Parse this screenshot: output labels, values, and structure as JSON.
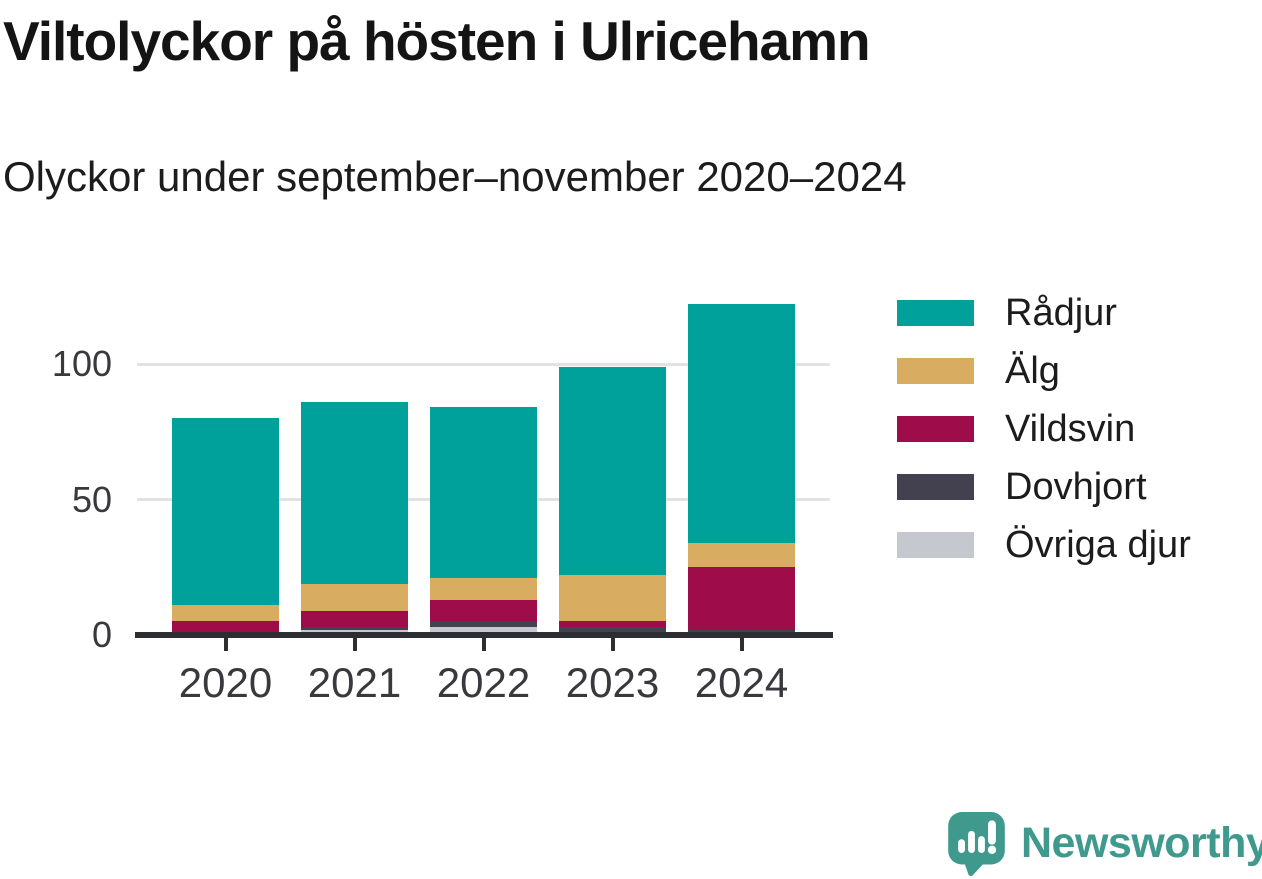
{
  "header": {
    "title": "Viltolyckor på hösten i Ulricehamn",
    "subtitle": "Olyckor under september–november 2020–2024"
  },
  "chart_data": {
    "type": "bar",
    "stacked": true,
    "title": "Viltolyckor på hösten i Ulricehamn",
    "subtitle": "Olyckor under september–november 2020–2024",
    "categories": [
      "2020",
      "2021",
      "2022",
      "2023",
      "2024"
    ],
    "series": [
      {
        "name": "Rådjur",
        "color": "#00a19b",
        "values": [
          69,
          67,
          63,
          77,
          88
        ]
      },
      {
        "name": "Älg",
        "color": "#d9ad61",
        "values": [
          6,
          10,
          8,
          17,
          9
        ]
      },
      {
        "name": "Vildsvin",
        "color": "#9e0d49",
        "values": [
          5,
          6,
          8,
          2,
          23
        ]
      },
      {
        "name": "Dovhjort",
        "color": "#434150",
        "values": [
          0,
          1,
          2,
          3,
          2
        ]
      },
      {
        "name": "Övriga djur",
        "color": "#c6c8d0",
        "values": [
          0,
          2,
          3,
          0,
          0
        ]
      }
    ],
    "stack_order_bottom_to_top": [
      "Övriga djur",
      "Dovhjort",
      "Vildsvin",
      "Älg",
      "Rådjur"
    ],
    "totals": [
      80,
      86,
      84,
      99,
      122
    ],
    "xlabel": "",
    "ylabel": "",
    "y_ticks": [
      0,
      50,
      100
    ],
    "ylim": [
      0,
      130
    ],
    "grid": "horizontal",
    "legend_position": "right",
    "axis_color": "#2d2d34",
    "tick_label_color": "#38383d",
    "gridline_color": "#e2e2e2"
  },
  "footer": {
    "brand": "Newsworthy",
    "brand_color": "#3f998c",
    "logo_icon": "newsworthy-speech-bubble-bar-chart-icon"
  }
}
